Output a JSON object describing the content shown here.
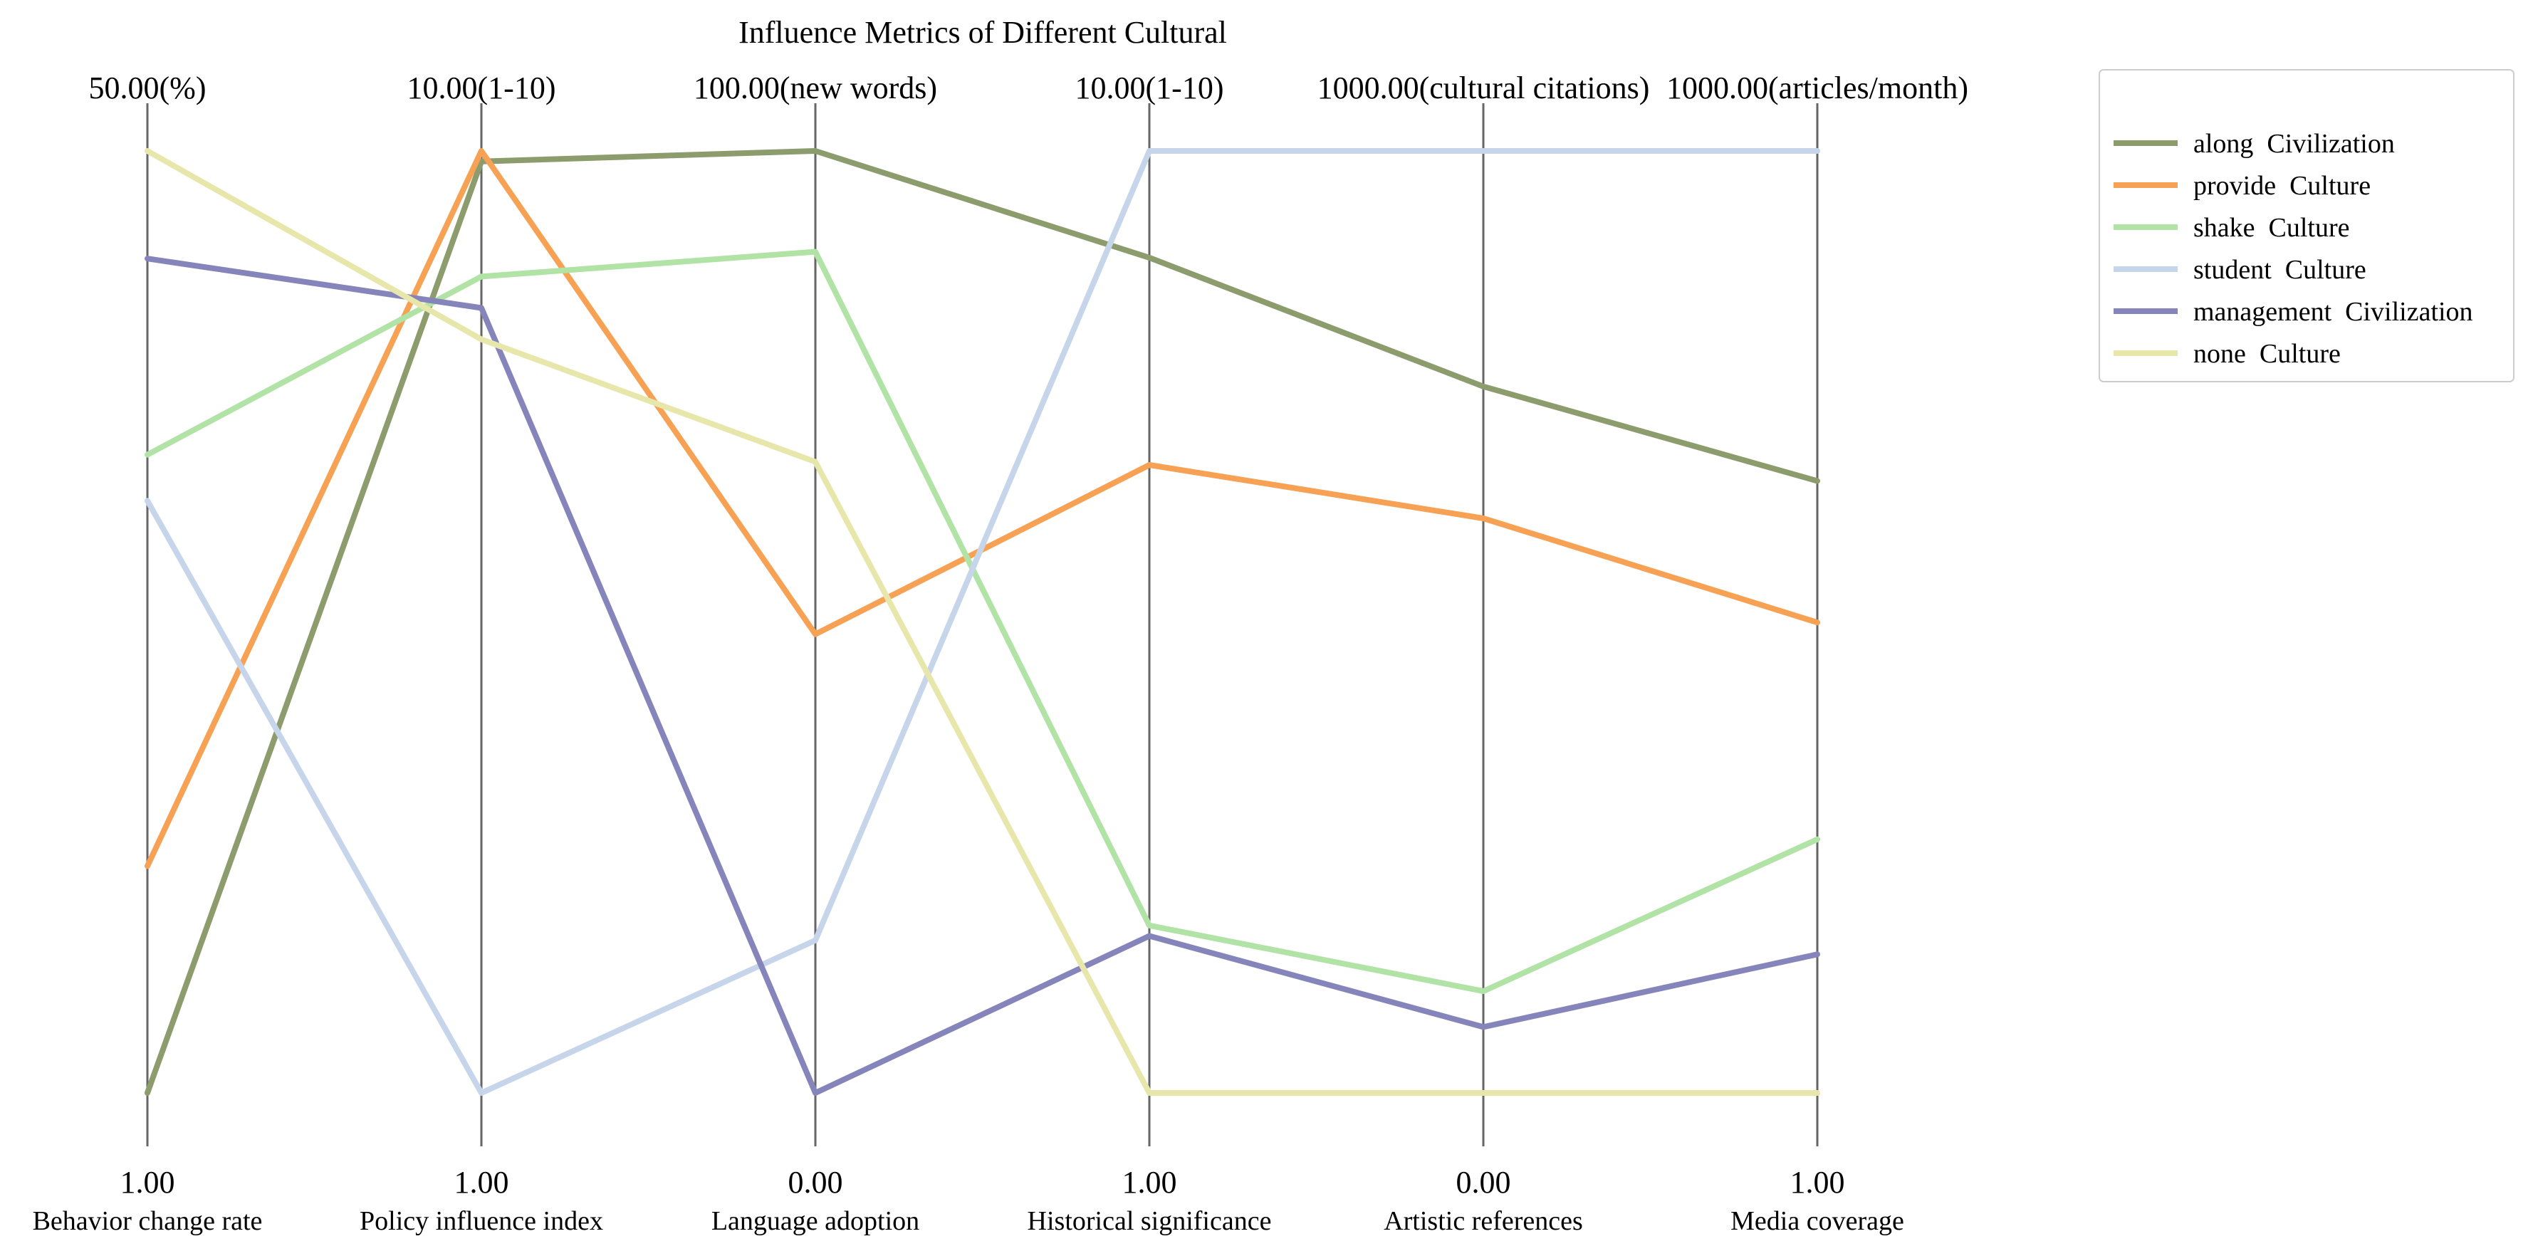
{
  "chart_data": {
    "type": "parallel_coordinates",
    "title": "Influence Metrics of Different Cultural",
    "axes": [
      {
        "label": "Behavior change rate",
        "min": 1.0,
        "max": 50.0,
        "min_label": "1.00",
        "max_label": "50.00(%)"
      },
      {
        "label": "Policy influence index",
        "min": 1.0,
        "max": 10.0,
        "min_label": "1.00",
        "max_label": "10.00(1-10)"
      },
      {
        "label": "Language adoption",
        "min": 0.0,
        "max": 100.0,
        "min_label": "0.00",
        "max_label": "100.00(new words)"
      },
      {
        "label": "Historical significance",
        "min": 1.0,
        "max": 10.0,
        "min_label": "1.00",
        "max_label": "10.00(1-10)"
      },
      {
        "label": "Artistic references",
        "min": 0.0,
        "max": 1000.0,
        "min_label": "0.00",
        "max_label": "1000.00(cultural citations)"
      },
      {
        "label": "Media coverage",
        "min": 1.0,
        "max": 1000.0,
        "min_label": "1.00",
        "max_label": "1000.00(articles/month)"
      }
    ],
    "series": [
      {
        "name": "along  Civilization",
        "color": "#8c9c6c",
        "values": [
          1.0,
          9.9,
          100.0,
          8.98,
          750,
          650
        ]
      },
      {
        "name": "provide  Culture",
        "color": "#f6a154",
        "values": [
          12.8,
          10.0,
          48.7,
          7.0,
          610,
          500
        ]
      },
      {
        "name": "shake  Culture",
        "color": "#b2e3a6",
        "values": [
          34.2,
          8.8,
          89.3,
          2.6,
          108,
          270
        ]
      },
      {
        "name": "student  Culture",
        "color": "#c6d5ea",
        "values": [
          31.8,
          1.0,
          16.2,
          10.0,
          1000,
          1000
        ]
      },
      {
        "name": "management  Civilization",
        "color": "#8685bb",
        "values": [
          44.4,
          8.5,
          0.0,
          2.5,
          70,
          148
        ]
      },
      {
        "name": "none  Culture",
        "color": "#e8e7ab",
        "values": [
          50.0,
          8.2,
          67.0,
          1.0,
          0,
          1
        ]
      }
    ],
    "legend_position": "top-right",
    "grid": false
  }
}
